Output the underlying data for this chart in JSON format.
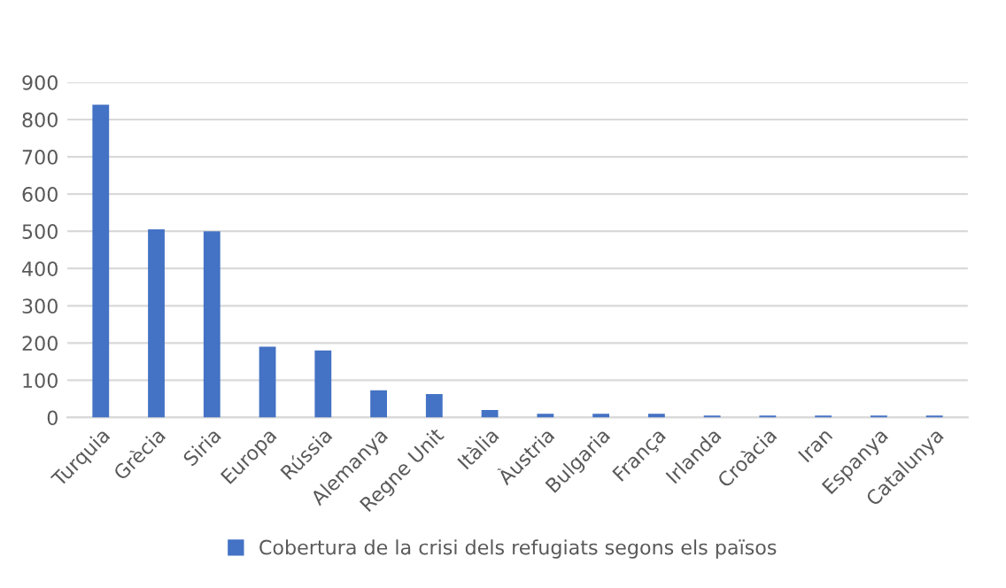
{
  "chart_data": {
    "type": "bar",
    "categories": [
      "Turquia",
      "Grècia",
      "Siria",
      "Europa",
      "Rússia",
      "Alemanya",
      "Regne Unit",
      "Itàlia",
      "Àustria",
      "Bulgaria",
      "França",
      "Irlanda",
      "Croàcia",
      "Iran",
      "Espanya",
      "Catalunya"
    ],
    "series": [
      {
        "name": "Cobertura de la crisi dels refugiats segons els països",
        "color": "#4472c4",
        "values": [
          840,
          505,
          500,
          190,
          180,
          73,
          63,
          20,
          10,
          10,
          10,
          5,
          5,
          5,
          5,
          5
        ]
      }
    ],
    "ylim": [
      0,
      900
    ],
    "yticks": [
      0,
      100,
      200,
      300,
      400,
      500,
      600,
      700,
      800,
      900
    ],
    "grid": "y",
    "legend": "bottom"
  }
}
